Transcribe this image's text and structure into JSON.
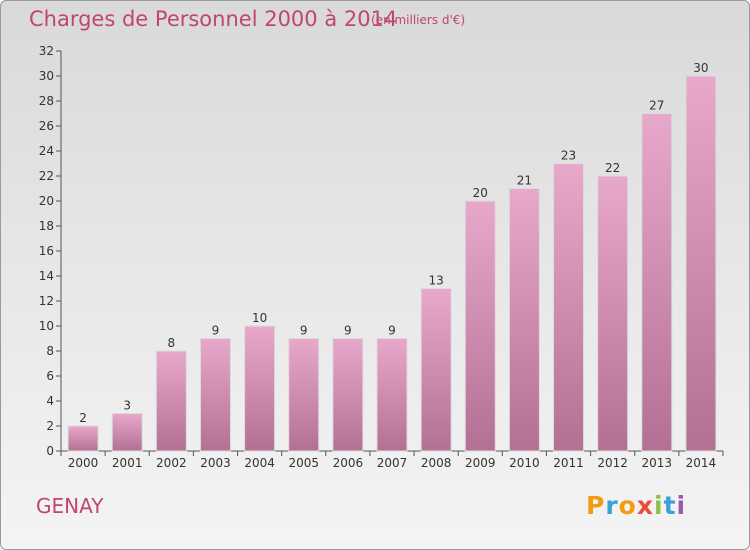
{
  "header": {
    "title": "Charges de Personnel 2000 à 2014",
    "unit": "(en milliers d'€)"
  },
  "footer": {
    "city": "GENAY",
    "logo": "Proxiti"
  },
  "colors": {
    "title": "#c0476a",
    "bar_top": "#e8a8cc",
    "bar_bottom": "#b27094",
    "bar_edge": "#dcdcdc",
    "logo": [
      "#f39c12",
      "#3aa1d8",
      "#f39c12",
      "#e74c3c",
      "#8bc34a",
      "#3aa1d8",
      "#9b59b6"
    ]
  },
  "chart_data": {
    "type": "bar",
    "title": "Charges de Personnel 2000 à 2014",
    "subtitle": "(en milliers d'€)",
    "xlabel": "",
    "ylabel": "",
    "categories": [
      "2000",
      "2001",
      "2002",
      "2003",
      "2004",
      "2005",
      "2006",
      "2007",
      "2008",
      "2009",
      "2010",
      "2011",
      "2012",
      "2013",
      "2014"
    ],
    "values": [
      2,
      3,
      8,
      9,
      10,
      9,
      9,
      9,
      13,
      20,
      21,
      23,
      22,
      27,
      30
    ],
    "ylim": [
      0,
      32
    ],
    "yticks": [
      0,
      2,
      4,
      6,
      8,
      10,
      12,
      14,
      16,
      18,
      20,
      22,
      24,
      26,
      28,
      30,
      32
    ],
    "grid": false
  }
}
